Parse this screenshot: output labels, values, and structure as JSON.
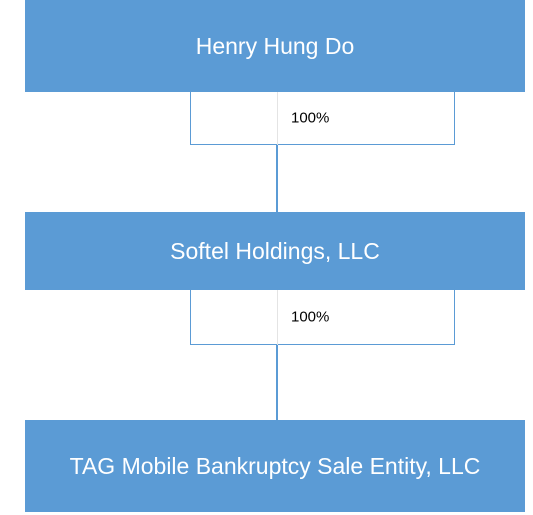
{
  "nodes": [
    {
      "label": "Henry Hung Do"
    },
    {
      "label": "Softel Holdings, LLC"
    },
    {
      "label": "TAG Mobile Bankruptcy Sale Entity, LLC"
    }
  ],
  "edges": [
    {
      "label": "100%"
    },
    {
      "label": "100%"
    }
  ]
}
